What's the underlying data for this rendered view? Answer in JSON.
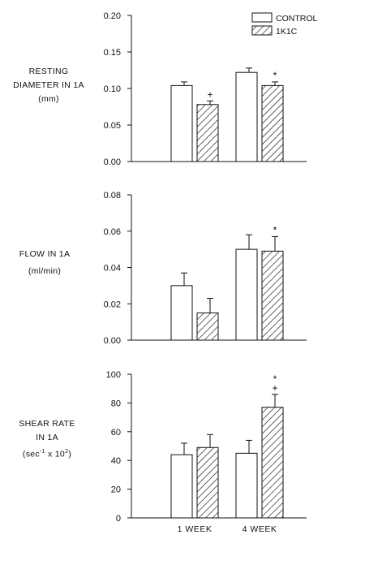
{
  "legend": [
    {
      "label": "CONTROL",
      "pattern": "solid-white"
    },
    {
      "label": "1K1C",
      "pattern": "hatched"
    }
  ],
  "colors": {
    "ink": "#111111",
    "background": "#ffffff"
  },
  "panel_labels": {
    "diameter": [
      "RESTING",
      "DIAMETER IN 1A",
      "(mm)"
    ],
    "flow": [
      "FLOW IN 1A",
      "(ml/min)"
    ],
    "shear_line1": "SHEAR RATE",
    "shear_line2": "IN 1A",
    "shear_unit_a": "(sec",
    "shear_unit_exp1": "-1",
    "shear_unit_b": " x 10",
    "shear_unit_exp2": "2",
    "shear_unit_c": ")"
  },
  "chart_data": [
    {
      "type": "bar",
      "categories": [
        "1 WEEK",
        "4 WEEK"
      ],
      "series": [
        {
          "name": "CONTROL",
          "values": [
            0.104,
            0.122
          ],
          "errors": [
            0.005,
            0.006
          ]
        },
        {
          "name": "1K1C",
          "values": [
            0.078,
            0.104
          ],
          "errors": [
            0.005,
            0.005
          ]
        }
      ],
      "ylim": [
        0,
        0.2
      ],
      "yticks": [
        "0.00",
        "0.05",
        "0.10",
        "0.15",
        "0.20"
      ],
      "annotations": [
        {
          "category": 0,
          "series": 1,
          "marks": [
            "+"
          ]
        },
        {
          "category": 1,
          "series": 1,
          "marks": [
            "*"
          ]
        }
      ],
      "legend": "top-right"
    },
    {
      "type": "bar",
      "categories": [
        "1 WEEK",
        "4 WEEK"
      ],
      "series": [
        {
          "name": "CONTROL",
          "values": [
            0.03,
            0.05
          ],
          "errors": [
            0.007,
            0.008
          ]
        },
        {
          "name": "1K1C",
          "values": [
            0.015,
            0.049
          ],
          "errors": [
            0.008,
            0.008
          ]
        }
      ],
      "ylim": [
        0,
        0.08
      ],
      "yticks": [
        "0.00",
        "0.02",
        "0.04",
        "0.06",
        "0.08"
      ],
      "annotations": [
        {
          "category": 1,
          "series": 1,
          "marks": [
            "*"
          ]
        }
      ]
    },
    {
      "type": "bar",
      "categories": [
        "1 WEEK",
        "4 WEEK"
      ],
      "series": [
        {
          "name": "CONTROL",
          "values": [
            44,
            45
          ],
          "errors": [
            8,
            9
          ]
        },
        {
          "name": "1K1C",
          "values": [
            49,
            77
          ],
          "errors": [
            9,
            9
          ]
        }
      ],
      "ylim": [
        0,
        100
      ],
      "yticks": [
        "0",
        "20",
        "40",
        "60",
        "80",
        "100"
      ],
      "annotations": [
        {
          "category": 1,
          "series": 1,
          "marks": [
            "+",
            "*"
          ]
        }
      ]
    }
  ]
}
